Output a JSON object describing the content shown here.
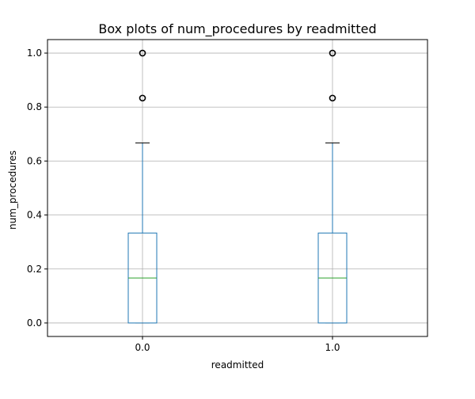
{
  "chart_data": {
    "type": "box",
    "title": "Box plots of num_procedures by readmitted",
    "xlabel": "readmitted",
    "ylabel": "num_procedures",
    "categories": [
      "0.0",
      "1.0"
    ],
    "boxes": [
      {
        "category": "0.0",
        "whisker_low": 0.0,
        "q1": 0.0,
        "median": 0.1667,
        "q3": 0.3333,
        "whisker_high": 0.6667,
        "outliers": [
          0.8333,
          1.0
        ]
      },
      {
        "category": "1.0",
        "whisker_low": 0.0,
        "q1": 0.0,
        "median": 0.1667,
        "q3": 0.3333,
        "whisker_high": 0.6667,
        "outliers": [
          0.8333,
          1.0
        ]
      }
    ],
    "ylim": [
      -0.05,
      1.05
    ],
    "yticks": [
      {
        "value": 0.0,
        "label": "0.0"
      },
      {
        "value": 0.2,
        "label": "0.2"
      },
      {
        "value": 0.4,
        "label": "0.4"
      },
      {
        "value": 0.6,
        "label": "0.6"
      },
      {
        "value": 0.8,
        "label": "0.8"
      },
      {
        "value": 1.0,
        "label": "1.0"
      }
    ],
    "grid": true,
    "colors": {
      "box": "#1f77b4",
      "whisker": "#1f77b4",
      "cap": "#000000",
      "median": "#2ca02c",
      "grid": "#b0b0b0",
      "outlier": "#000000"
    }
  }
}
